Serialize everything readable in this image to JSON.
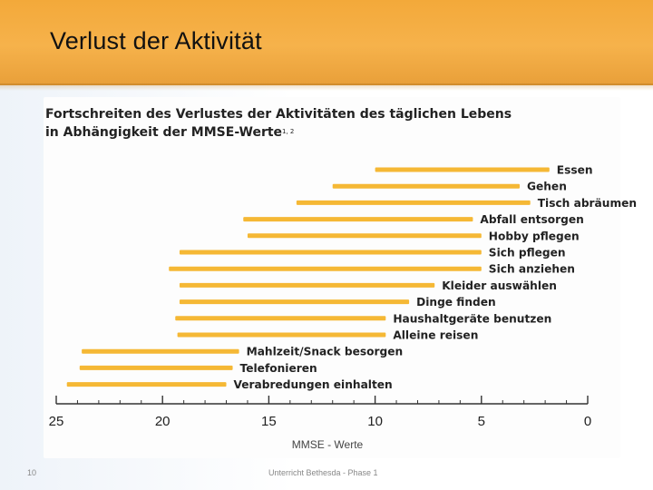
{
  "slide": {
    "title": "Verlust der Aktivität",
    "page_number": "10",
    "footer": "Unterricht Bethesda - Phase 1"
  },
  "colors": {
    "header": "#f3a93a",
    "bar": "#f5b835",
    "axis": "#333333",
    "text": "#222222"
  },
  "chart_data": {
    "type": "bar",
    "orientation": "horizontal-range",
    "title_line1": "Fortschreiten des Verlustes der Aktivitäten des täglichen Lebens",
    "title_line2": "in Abhängigkeit der MMSE-Werte",
    "title_sup": "1, 2",
    "xlabel": "MMSE - Werte",
    "xlim": [
      25,
      0
    ],
    "xticks": [
      25,
      20,
      15,
      10,
      5,
      0
    ],
    "grid": false,
    "legend": "none",
    "series": [
      {
        "label": "Essen",
        "start": 10,
        "end": 1.8
      },
      {
        "label": "Gehen",
        "start": 12,
        "end": 3.2
      },
      {
        "label": "Tisch abräumen",
        "start": 13.7,
        "end": 2.7
      },
      {
        "label": "Abfall entsorgen",
        "start": 16.2,
        "end": 5.4
      },
      {
        "label": "Hobby pflegen",
        "start": 16,
        "end": 5
      },
      {
        "label": "Sich pflegen",
        "start": 19.2,
        "end": 5
      },
      {
        "label": "Sich anziehen",
        "start": 19.7,
        "end": 5
      },
      {
        "label": "Kleider auswählen",
        "start": 19.2,
        "end": 7.2
      },
      {
        "label": "Dinge finden",
        "start": 19.2,
        "end": 8.4
      },
      {
        "label": "Haushaltgeräte benutzen",
        "start": 19.4,
        "end": 9.5
      },
      {
        "label": "Alleine reisen",
        "start": 19.3,
        "end": 9.5
      },
      {
        "label": "Mahlzeit/Snack besorgen",
        "start": 23.8,
        "end": 16.4
      },
      {
        "label": "Telefonieren",
        "start": 23.9,
        "end": 16.7
      },
      {
        "label": "Verabredungen einhalten",
        "start": 24.5,
        "end": 17
      }
    ]
  }
}
